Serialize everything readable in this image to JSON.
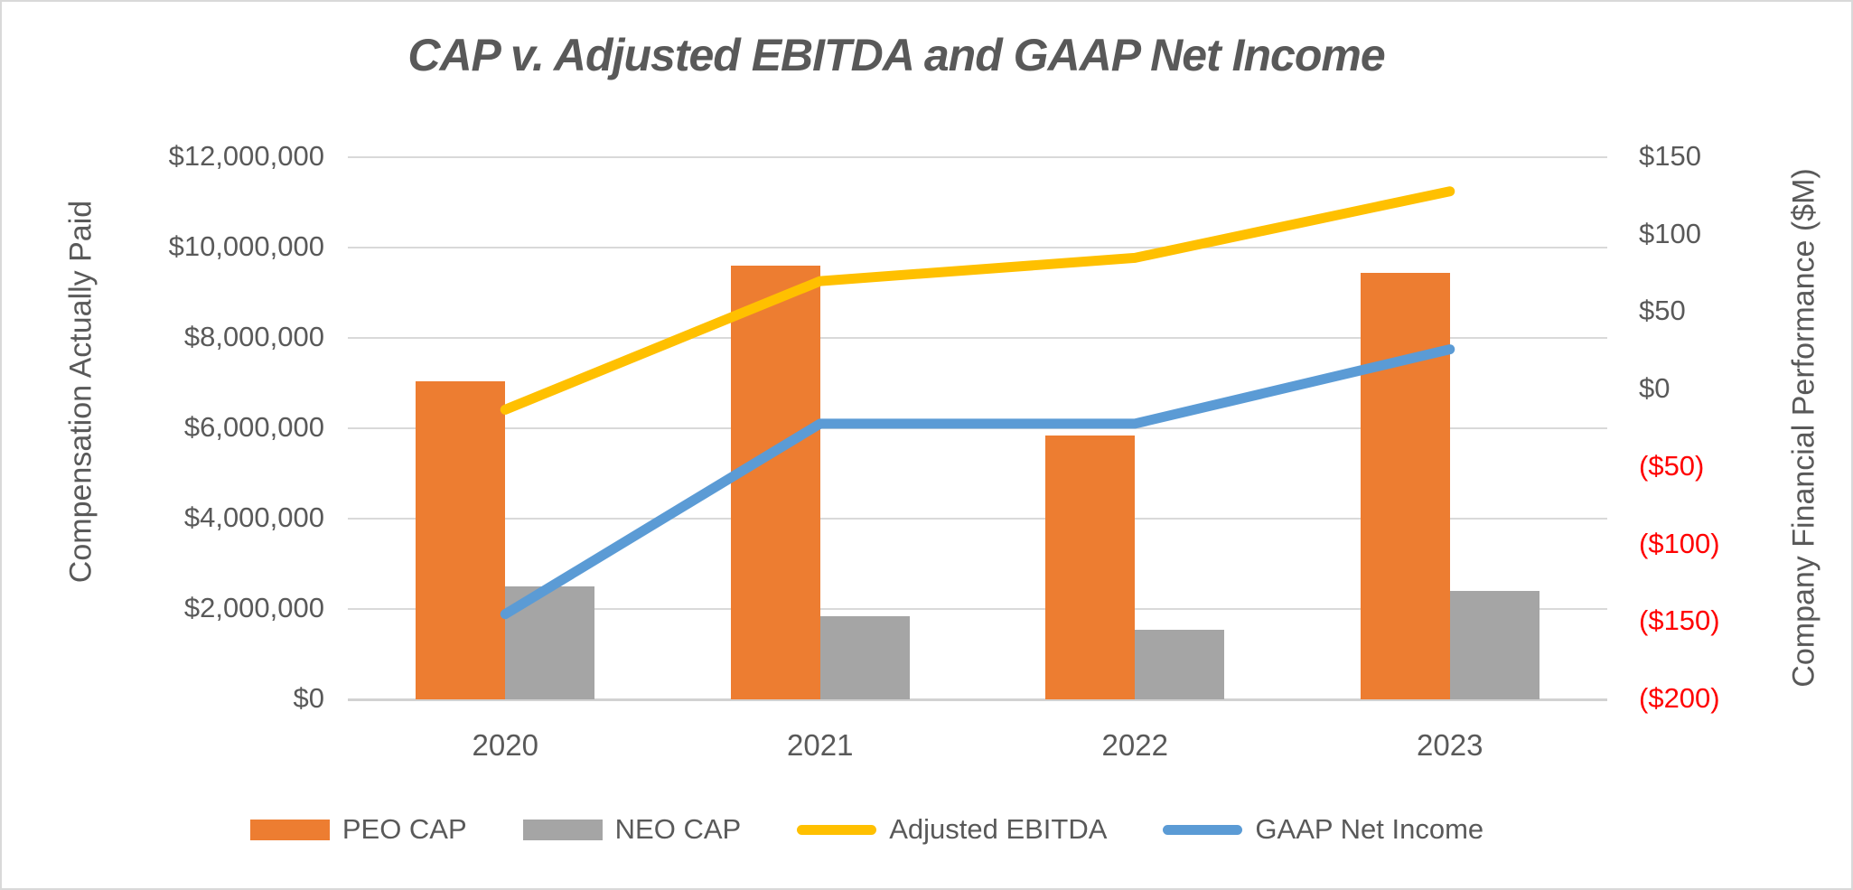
{
  "title": "CAP v. Adjusted EBITDA and GAAP Net Income",
  "colors": {
    "peo_cap": "#ED7D31",
    "neo_cap": "#A5A5A5",
    "adjusted_ebitda": "#FFC000",
    "gaap_net_income": "#5B9BD5",
    "text": "#595959",
    "negative_tick": "#FF0000",
    "gridline": "#D9D9D9"
  },
  "chart_data": {
    "type": "combo-bar-line",
    "title": "CAP v. Adjusted EBITDA and GAAP Net Income",
    "categories": [
      "2020",
      "2021",
      "2022",
      "2023"
    ],
    "bar_series": [
      {
        "name": "PEO CAP",
        "color": "#ED7D31",
        "axis": "left",
        "values": [
          7050000,
          9600000,
          5850000,
          9450000
        ]
      },
      {
        "name": "NEO CAP",
        "color": "#A5A5A5",
        "axis": "left",
        "values": [
          2500000,
          1850000,
          1550000,
          2400000
        ]
      }
    ],
    "line_series": [
      {
        "name": "Adjusted EBITDA",
        "color": "#FFC000",
        "axis": "right",
        "values": [
          -13,
          70,
          85,
          128
        ]
      },
      {
        "name": "GAAP Net Income",
        "color": "#5B9BD5",
        "axis": "right",
        "values": [
          -145,
          -22,
          -22,
          26
        ]
      }
    ],
    "left_axis": {
      "title": "Compensation Actually Paid",
      "min": 0,
      "max": 12000000,
      "ticks": [
        "$0",
        "$2,000,000",
        "$4,000,000",
        "$6,000,000",
        "$8,000,000",
        "$10,000,000",
        "$12,000,000"
      ]
    },
    "right_axis": {
      "title": "Company Financial Performance ($M)",
      "min": -200,
      "max": 150,
      "ticks": [
        {
          "label": "$150",
          "value": 150
        },
        {
          "label": "$100",
          "value": 100
        },
        {
          "label": "$50",
          "value": 50
        },
        {
          "label": "$0",
          "value": 0
        },
        {
          "label": "($50)",
          "value": -50
        },
        {
          "label": "($100)",
          "value": -100
        },
        {
          "label": "($150)",
          "value": -150
        },
        {
          "label": "($200)",
          "value": -200
        }
      ]
    },
    "grid": true,
    "legend_position": "bottom"
  }
}
